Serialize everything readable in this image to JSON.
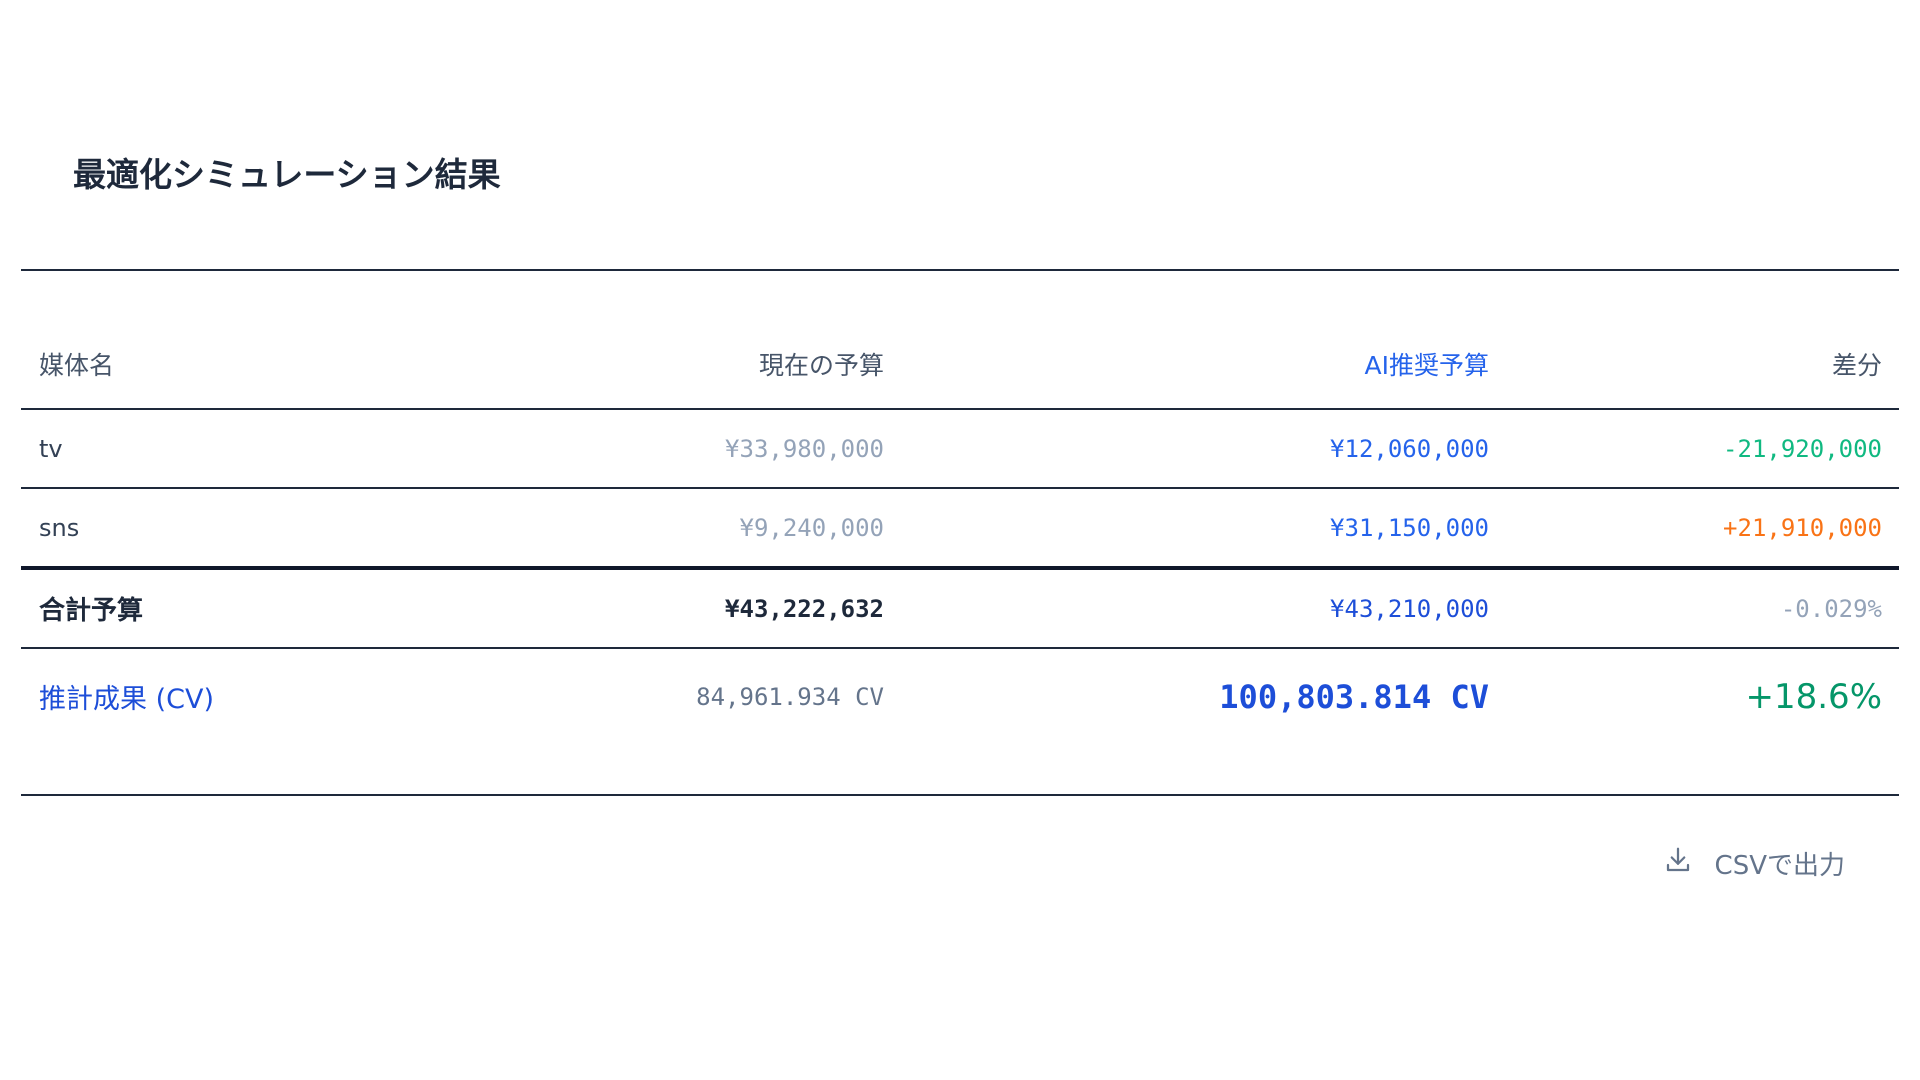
{
  "title": "最適化シミュレーション結果",
  "table": {
    "headers": [
      "媒体名",
      "現在の予算",
      "AI推奨予算",
      "差分"
    ],
    "rows": [
      {
        "name": "tv",
        "current": "¥33,980,000",
        "ai": "¥12,060,000",
        "diff": "-21,920,000"
      },
      {
        "name": "sns",
        "current": "¥9,240,000",
        "ai": "¥31,150,000",
        "diff": "+21,910,000"
      }
    ],
    "total": {
      "name": "合計予算",
      "current": "¥43,222,632",
      "ai": "¥43,210,000",
      "diff": "-0.029%"
    },
    "cv": {
      "name": "推計成果 (CV)",
      "current": "84,961.934 CV",
      "ai": "100,803.814 CV",
      "diff": "+18.6%"
    }
  },
  "export": {
    "label": "CSVで出力",
    "icon": "download-icon"
  },
  "colors": {
    "accent": "#1d4ed8",
    "negative": "#10b981",
    "positive": "#f97316",
    "muted": "#94a3b8",
    "gain": "#059669"
  }
}
